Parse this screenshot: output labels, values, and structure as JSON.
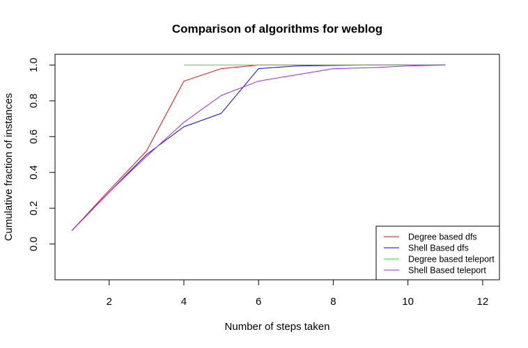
{
  "chart_data": {
    "type": "line",
    "title": "Comparison of algorithms for weblog",
    "xlabel": "Number of steps taken",
    "ylabel": "Cumulative fraction of instances",
    "xlim": [
      0.55,
      12.45
    ],
    "ylim": [
      -0.2,
      1.06
    ],
    "xticks": [
      2,
      4,
      6,
      8,
      10,
      12
    ],
    "yticks": [
      0.0,
      0.2,
      0.4,
      0.6,
      0.8,
      1.0
    ],
    "xtick_labels": [
      "2",
      "4",
      "6",
      "8",
      "10",
      "12"
    ],
    "ytick_labels": [
      "0.0",
      "0.2",
      "0.4",
      "0.6",
      "0.8",
      "1.0"
    ],
    "grid": false,
    "legend_position": "bottom-right",
    "series": [
      {
        "name": "Degree based dfs",
        "color": "#ff0000",
        "x": [
          1,
          2,
          3,
          4,
          5,
          6,
          7,
          8,
          9,
          10,
          11
        ],
        "y": [
          0.075,
          0.3,
          0.52,
          0.91,
          0.98,
          1.0,
          1.0,
          1.0,
          1.0,
          1.0,
          1.0
        ]
      },
      {
        "name": "Shell Based dfs",
        "color": "#0000ff",
        "x": [
          1,
          2,
          3,
          4,
          5,
          6,
          7,
          8,
          9,
          10,
          11
        ],
        "y": [
          0.075,
          0.29,
          0.5,
          0.655,
          0.73,
          0.98,
          0.995,
          0.998,
          1.0,
          1.0,
          1.0
        ]
      },
      {
        "name": "Degree based teleport",
        "color": "#00ff00",
        "x": [
          4,
          5,
          6,
          7,
          8,
          9,
          10,
          11
        ],
        "y": [
          1.0,
          1.0,
          1.0,
          1.0,
          1.0,
          1.0,
          1.0,
          1.0
        ]
      },
      {
        "name": "Shell Based teleport",
        "color": "#a020f0",
        "x": [
          1,
          2,
          3,
          4,
          5,
          6,
          7,
          8,
          9,
          10,
          11
        ],
        "y": [
          0.075,
          0.29,
          0.49,
          0.68,
          0.83,
          0.91,
          0.945,
          0.98,
          0.985,
          0.995,
          1.0
        ]
      }
    ]
  }
}
